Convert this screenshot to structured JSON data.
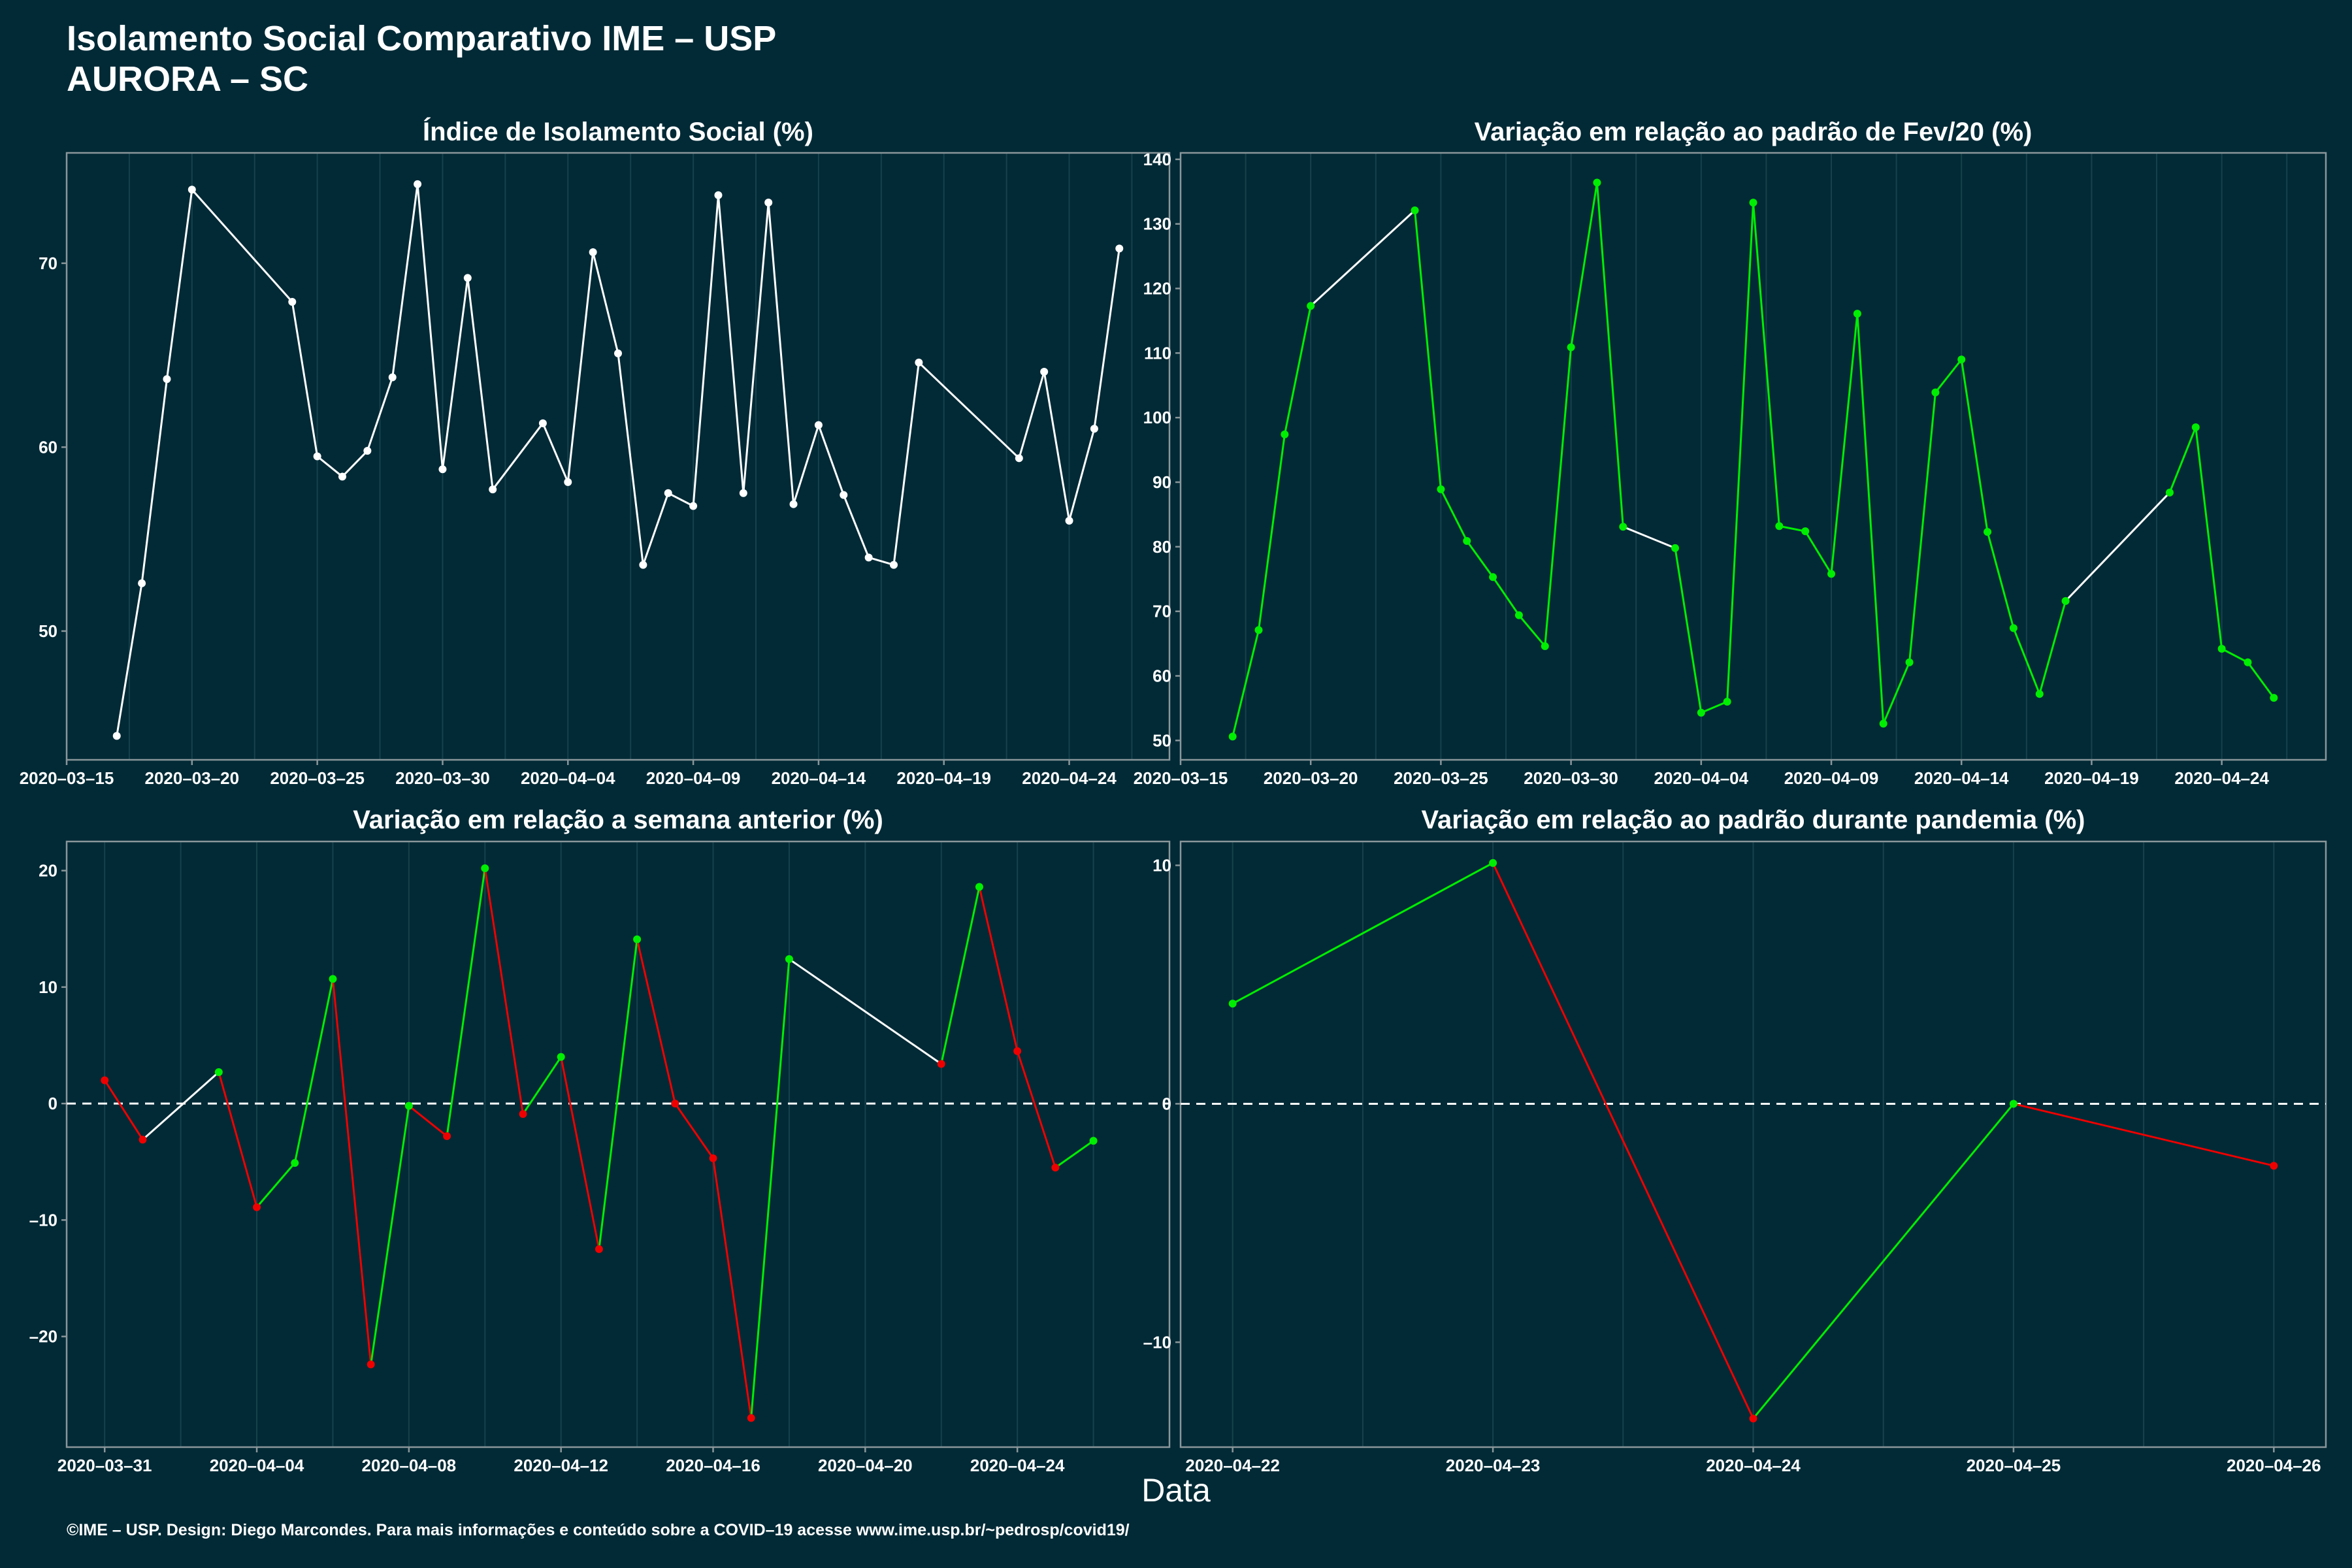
{
  "header": {
    "title": "Isolamento Social Comparativo IME – USP",
    "subtitle": "AURORA – SC"
  },
  "x_axis_label": "Data",
  "footer": "©IME – USP. Design: Diego Marcondes. Para mais informações e conteúdo sobre a COVID–19 acesse www.ime.usp.br/~pedrosp/covid19/",
  "colors": {
    "background": "#012a36",
    "up": "#00ee00",
    "down": "#ee0000",
    "neutral": "#ffffff",
    "frame": "#8a969a",
    "grid": "#17414c"
  },
  "chart_data": [
    {
      "id": "isolamento",
      "type": "line",
      "title": "Índice de Isolamento Social (%)",
      "xlim": [
        "2020-03-15",
        "2020-04-28"
      ],
      "ylim": [
        43,
        76
      ],
      "yticks": [
        50,
        60,
        70
      ],
      "xticks": [
        "2020-03-15",
        "2020-03-20",
        "2020-03-25",
        "2020-03-30",
        "2020-04-04",
        "2020-04-09",
        "2020-04-14",
        "2020-04-19",
        "2020-04-24"
      ],
      "xtick_labels": [
        "2020–03–15",
        "2020–03–20",
        "2020–03–25",
        "2020–03–30",
        "2020–04–04",
        "2020–04–09",
        "2020–04–14",
        "2020–04–19",
        "2020–04–24"
      ],
      "color_mode": "single",
      "zero_line": false,
      "points": [
        [
          "2020-03-17",
          44.3
        ],
        [
          "2020-03-18",
          52.6
        ],
        [
          "2020-03-19",
          63.7
        ],
        [
          "2020-03-20",
          74.0
        ],
        [
          "2020-03-24",
          67.9
        ],
        [
          "2020-03-25",
          59.5
        ],
        [
          "2020-03-26",
          58.4
        ],
        [
          "2020-03-27",
          59.8
        ],
        [
          "2020-03-28",
          63.8
        ],
        [
          "2020-03-29",
          74.3
        ],
        [
          "2020-03-30",
          58.8
        ],
        [
          "2020-03-31",
          69.2
        ],
        [
          "2020-04-01",
          57.7
        ],
        [
          "2020-04-03",
          61.3
        ],
        [
          "2020-04-04",
          58.1
        ],
        [
          "2020-04-05",
          70.6
        ],
        [
          "2020-04-06",
          65.1
        ],
        [
          "2020-04-07",
          53.6
        ],
        [
          "2020-04-08",
          57.5
        ],
        [
          "2020-04-09",
          56.8
        ],
        [
          "2020-04-10",
          73.7
        ],
        [
          "2020-04-11",
          57.5
        ],
        [
          "2020-04-12",
          73.3
        ],
        [
          "2020-04-13",
          56.9
        ],
        [
          "2020-04-14",
          61.2
        ],
        [
          "2020-04-15",
          57.4
        ],
        [
          "2020-04-16",
          54.0
        ],
        [
          "2020-04-17",
          53.6
        ],
        [
          "2020-04-18",
          64.6
        ],
        [
          "2020-04-22",
          59.4
        ],
        [
          "2020-04-23",
          64.1
        ],
        [
          "2020-04-24",
          56.0
        ],
        [
          "2020-04-25",
          61.0
        ],
        [
          "2020-04-26",
          70.8
        ]
      ]
    },
    {
      "id": "fev20",
      "type": "line",
      "title": "Variação em relação ao padrão de Fev/20 (%)",
      "xlim": [
        "2020-03-15",
        "2020-04-28"
      ],
      "ylim": [
        47,
        141
      ],
      "yticks": [
        50,
        60,
        70,
        80,
        90,
        100,
        110,
        120,
        130,
        140
      ],
      "xticks": [
        "2020-03-15",
        "2020-03-20",
        "2020-03-25",
        "2020-03-30",
        "2020-04-04",
        "2020-04-09",
        "2020-04-14",
        "2020-04-19",
        "2020-04-24"
      ],
      "xtick_labels": [
        "2020–03–15",
        "2020–03–20",
        "2020–03–25",
        "2020–03–30",
        "2020–04–04",
        "2020–04–09",
        "2020–04–14",
        "2020–04–19",
        "2020–04–24"
      ],
      "color_mode": "green",
      "zero_line": false,
      "points": [
        [
          "2020-03-17",
          50.6
        ],
        [
          "2020-03-18",
          67.1
        ],
        [
          "2020-03-19",
          97.4
        ],
        [
          "2020-03-20",
          117.3
        ],
        [
          "2020-03-24",
          132.1
        ],
        [
          "2020-03-25",
          88.9
        ],
        [
          "2020-03-26",
          80.9
        ],
        [
          "2020-03-27",
          75.3
        ],
        [
          "2020-03-28",
          69.4
        ],
        [
          "2020-03-29",
          64.6
        ],
        [
          "2020-03-30",
          110.9
        ],
        [
          "2020-03-31",
          136.4
        ],
        [
          "2020-04-01",
          83.1
        ],
        [
          "2020-04-03",
          79.8
        ],
        [
          "2020-04-04",
          54.3
        ],
        [
          "2020-04-05",
          56.0
        ],
        [
          "2020-04-06",
          133.3
        ],
        [
          "2020-04-07",
          83.2
        ],
        [
          "2020-04-08",
          82.4
        ],
        [
          "2020-04-09",
          75.8
        ],
        [
          "2020-04-10",
          116.1
        ],
        [
          "2020-04-11",
          52.6
        ],
        [
          "2020-04-12",
          62.1
        ],
        [
          "2020-04-13",
          103.9
        ],
        [
          "2020-04-14",
          109.0
        ],
        [
          "2020-04-15",
          82.3
        ],
        [
          "2020-04-16",
          67.4
        ],
        [
          "2020-04-17",
          57.2
        ],
        [
          "2020-04-18",
          71.6
        ],
        [
          "2020-04-22",
          88.4
        ],
        [
          "2020-04-23",
          98.5
        ],
        [
          "2020-04-24",
          64.2
        ],
        [
          "2020-04-25",
          62.1
        ],
        [
          "2020-04-26",
          56.6
        ]
      ]
    },
    {
      "id": "semana",
      "type": "line",
      "title": "Variação em relação a semana anterior (%)",
      "xlim": [
        "2020-03-30",
        "2020-04-28"
      ],
      "ylim": [
        -29.5,
        22.5
      ],
      "yticks": [
        -20,
        -10,
        0,
        10,
        20
      ],
      "ytick_labels": [
        "–20",
        "–10",
        "0",
        "10",
        "20"
      ],
      "xticks": [
        "2020-03-31",
        "2020-04-04",
        "2020-04-08",
        "2020-04-12",
        "2020-04-16",
        "2020-04-20",
        "2020-04-24"
      ],
      "xtick_labels": [
        "2020–03–31",
        "2020–04–04",
        "2020–04–08",
        "2020–04–12",
        "2020–04–16",
        "2020–04–20",
        "2020–04–24"
      ],
      "color_mode": "sign",
      "zero_line": true,
      "points": [
        [
          "2020-03-31",
          2.0
        ],
        [
          "2020-04-01",
          -3.1
        ],
        [
          "2020-04-03",
          2.7
        ],
        [
          "2020-04-04",
          -8.9
        ],
        [
          "2020-04-05",
          -5.1
        ],
        [
          "2020-04-06",
          10.7
        ],
        [
          "2020-04-07",
          -22.4
        ],
        [
          "2020-04-08",
          -0.2
        ],
        [
          "2020-04-09",
          -2.8
        ],
        [
          "2020-04-10",
          20.2
        ],
        [
          "2020-04-11",
          -0.9
        ],
        [
          "2020-04-12",
          4.0
        ],
        [
          "2020-04-13",
          -12.5
        ],
        [
          "2020-04-14",
          14.1
        ],
        [
          "2020-04-15",
          0.0
        ],
        [
          "2020-04-16",
          -4.7
        ],
        [
          "2020-04-17",
          -27.0
        ],
        [
          "2020-04-18",
          12.4
        ],
        [
          "2020-04-22",
          3.4
        ],
        [
          "2020-04-23",
          18.6
        ],
        [
          "2020-04-24",
          4.5
        ],
        [
          "2020-04-25",
          -5.5
        ],
        [
          "2020-04-26",
          -3.2
        ]
      ]
    },
    {
      "id": "pandemia",
      "type": "line",
      "title": "Variação em relação ao padrão durante pandemia (%)",
      "xlim": [
        "2020-04-22",
        "2020-04-26"
      ],
      "xpad_days": 0.2,
      "ylim": [
        -14.4,
        11.0
      ],
      "yticks": [
        -10,
        0,
        10
      ],
      "ytick_labels": [
        "–10",
        "0",
        "10"
      ],
      "xticks": [
        "2020-04-22",
        "2020-04-23",
        "2020-04-24",
        "2020-04-25",
        "2020-04-26"
      ],
      "xtick_labels": [
        "2020–04–22",
        "2020–04–23",
        "2020–04–24",
        "2020–04–25",
        "2020–04–26"
      ],
      "color_mode": "sign",
      "zero_line": true,
      "points": [
        [
          "2020-04-22",
          4.2
        ],
        [
          "2020-04-23",
          10.1
        ],
        [
          "2020-04-24",
          -13.2
        ],
        [
          "2020-04-25",
          0.0
        ],
        [
          "2020-04-26",
          -2.6
        ]
      ]
    }
  ]
}
